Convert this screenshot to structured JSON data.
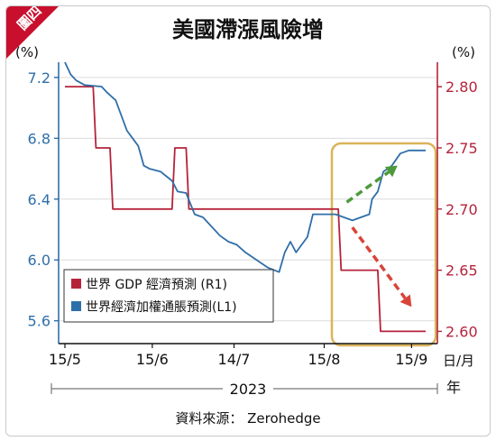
{
  "figure_tag": "圖四",
  "chart_data": {
    "type": "line",
    "title": "美國滯漲風險增",
    "left_axis": {
      "unit": "(%)",
      "ticks": [
        5.6,
        6.0,
        6.4,
        6.8,
        7.2
      ],
      "range": [
        5.45,
        7.3
      ]
    },
    "right_axis": {
      "unit": "(%)",
      "ticks": [
        2.6,
        2.65,
        2.7,
        2.75,
        2.8
      ],
      "range": [
        2.59,
        2.82
      ]
    },
    "x_ticks": [
      "15/5",
      "15/6",
      "14/7",
      "15/8",
      "15/9"
    ],
    "x_unit": "日/月",
    "year_label": "2023",
    "year_unit": "年",
    "source": "資料來源： Zerohedge",
    "series": [
      {
        "name": "世界 GDP 經濟預測 (R1)",
        "axis": "right",
        "color": "#b5233b",
        "points": [
          [
            "05-15",
            2.8
          ],
          [
            "05-25",
            2.8
          ],
          [
            "05-26",
            2.75
          ],
          [
            "05-31",
            2.75
          ],
          [
            "06-01",
            2.7
          ],
          [
            "06-22",
            2.7
          ],
          [
            "06-23",
            2.75
          ],
          [
            "06-27",
            2.75
          ],
          [
            "06-28",
            2.7
          ],
          [
            "08-20",
            2.7
          ],
          [
            "08-21",
            2.65
          ],
          [
            "09-03",
            2.65
          ],
          [
            "09-04",
            2.6
          ],
          [
            "09-20",
            2.6
          ]
        ]
      },
      {
        "name": "世界經濟加權通脹預測(L1)",
        "axis": "left",
        "color": "#2f6fa8",
        "points": [
          [
            "05-15",
            7.3
          ],
          [
            "05-17",
            7.22
          ],
          [
            "05-19",
            7.18
          ],
          [
            "05-22",
            7.15
          ],
          [
            "05-28",
            7.14
          ],
          [
            "05-30",
            7.1
          ],
          [
            "06-02",
            7.05
          ],
          [
            "06-04",
            6.95
          ],
          [
            "06-06",
            6.85
          ],
          [
            "06-08",
            6.8
          ],
          [
            "06-10",
            6.75
          ],
          [
            "06-12",
            6.62
          ],
          [
            "06-14",
            6.6
          ],
          [
            "06-18",
            6.58
          ],
          [
            "06-20",
            6.55
          ],
          [
            "06-22",
            6.52
          ],
          [
            "06-24",
            6.45
          ],
          [
            "06-27",
            6.44
          ],
          [
            "06-30",
            6.3
          ],
          [
            "07-03",
            6.28
          ],
          [
            "07-06",
            6.22
          ],
          [
            "07-09",
            6.16
          ],
          [
            "07-12",
            6.12
          ],
          [
            "07-15",
            6.1
          ],
          [
            "07-18",
            6.05
          ],
          [
            "07-22",
            6.0
          ],
          [
            "07-26",
            5.95
          ],
          [
            "07-30",
            5.92
          ],
          [
            "08-01",
            6.05
          ],
          [
            "08-03",
            6.12
          ],
          [
            "08-05",
            6.05
          ],
          [
            "08-07",
            6.1
          ],
          [
            "08-09",
            6.15
          ],
          [
            "08-11",
            6.3
          ],
          [
            "08-13",
            6.3
          ],
          [
            "08-19",
            6.3
          ],
          [
            "08-22",
            6.28
          ],
          [
            "08-25",
            6.26
          ],
          [
            "08-28",
            6.28
          ],
          [
            "08-31",
            6.3
          ],
          [
            "09-01",
            6.4
          ],
          [
            "09-03",
            6.45
          ],
          [
            "09-05",
            6.58
          ],
          [
            "09-08",
            6.62
          ],
          [
            "09-11",
            6.7
          ],
          [
            "09-14",
            6.72
          ],
          [
            "09-17",
            6.72
          ],
          [
            "09-20",
            6.72
          ]
        ]
      }
    ],
    "legend_position": "bottom-left",
    "annotations": {
      "highlight_box": {
        "from": "08-19",
        "to": "09-21",
        "color": "#d9b45a"
      },
      "up_arrow": {
        "from": [
          "08-23",
          6.38
        ],
        "to": [
          "09-10",
          6.62
        ],
        "color": "#4d9a3a"
      },
      "down_arrow": {
        "from": [
          "08-25",
          2.685
        ],
        "to": [
          "09-15",
          2.62
        ],
        "color": "#d9443a"
      }
    }
  }
}
